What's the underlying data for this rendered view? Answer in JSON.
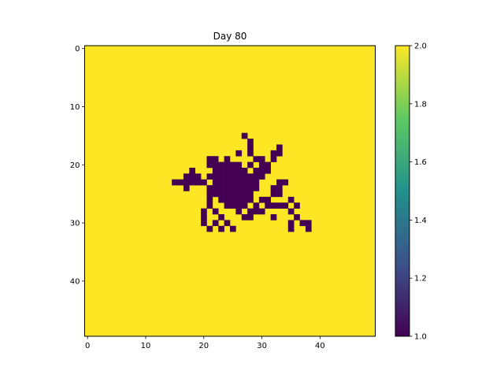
{
  "chart_data": {
    "type": "heatmap",
    "title": "Day 80",
    "xlabel": "",
    "ylabel": "",
    "grid": false,
    "rows": 50,
    "cols": 50,
    "background_value": 2.0,
    "xlim": [
      -0.5,
      49.5
    ],
    "ylim": [
      49.5,
      -0.5
    ],
    "x_ticks": [
      0,
      10,
      20,
      30,
      40
    ],
    "x_tick_labels": [
      "0",
      "10",
      "20",
      "30",
      "40"
    ],
    "y_ticks": [
      0,
      10,
      20,
      30,
      40
    ],
    "y_tick_labels": [
      "0",
      "10",
      "20",
      "30",
      "40"
    ],
    "colorbar": {
      "min": 1.0,
      "max": 2.0,
      "ticks": [
        1.0,
        1.2,
        1.4,
        1.6,
        1.8,
        2.0
      ],
      "tick_labels": [
        "1.0",
        "1.2",
        "1.4",
        "1.6",
        "1.8",
        "2.0"
      ],
      "colormap": "viridis",
      "colors": [
        "#440154",
        "#3b528b",
        "#21918c",
        "#5ec962",
        "#fde725"
      ]
    },
    "cells_value_1": [
      [
        15,
        27
      ],
      [
        16,
        28
      ],
      [
        17,
        28
      ],
      [
        17,
        33
      ],
      [
        18,
        26
      ],
      [
        18,
        28
      ],
      [
        18,
        32
      ],
      [
        18,
        33
      ],
      [
        19,
        21
      ],
      [
        19,
        22
      ],
      [
        19,
        24
      ],
      [
        19,
        29
      ],
      [
        19,
        30
      ],
      [
        19,
        32
      ],
      [
        20,
        21
      ],
      [
        20,
        22
      ],
      [
        20,
        23
      ],
      [
        20,
        24
      ],
      [
        20,
        25
      ],
      [
        20,
        26
      ],
      [
        20,
        28
      ],
      [
        20,
        30
      ],
      [
        20,
        31
      ],
      [
        21,
        18
      ],
      [
        21,
        22
      ],
      [
        21,
        23
      ],
      [
        21,
        24
      ],
      [
        21,
        25
      ],
      [
        21,
        26
      ],
      [
        21,
        27
      ],
      [
        21,
        29
      ],
      [
        21,
        30
      ],
      [
        21,
        31
      ],
      [
        22,
        17
      ],
      [
        22,
        18
      ],
      [
        22,
        19
      ],
      [
        22,
        21
      ],
      [
        22,
        22
      ],
      [
        22,
        23
      ],
      [
        22,
        24
      ],
      [
        22,
        25
      ],
      [
        22,
        26
      ],
      [
        22,
        27
      ],
      [
        22,
        28
      ],
      [
        22,
        29
      ],
      [
        22,
        30
      ],
      [
        23,
        15
      ],
      [
        23,
        16
      ],
      [
        23,
        17
      ],
      [
        23,
        18
      ],
      [
        23,
        19
      ],
      [
        23,
        20
      ],
      [
        23,
        22
      ],
      [
        23,
        23
      ],
      [
        23,
        24
      ],
      [
        23,
        25
      ],
      [
        23,
        26
      ],
      [
        23,
        27
      ],
      [
        23,
        28
      ],
      [
        23,
        29
      ],
      [
        23,
        33
      ],
      [
        23,
        34
      ],
      [
        24,
        17
      ],
      [
        24,
        21
      ],
      [
        24,
        22
      ],
      [
        24,
        23
      ],
      [
        24,
        24
      ],
      [
        24,
        25
      ],
      [
        24,
        26
      ],
      [
        24,
        27
      ],
      [
        24,
        28
      ],
      [
        24,
        29
      ],
      [
        24,
        32
      ],
      [
        24,
        33
      ],
      [
        25,
        21
      ],
      [
        25,
        22
      ],
      [
        25,
        23
      ],
      [
        25,
        24
      ],
      [
        25,
        25
      ],
      [
        25,
        26
      ],
      [
        25,
        27
      ],
      [
        25,
        28
      ],
      [
        25,
        32
      ],
      [
        25,
        33
      ],
      [
        26,
        21
      ],
      [
        26,
        23
      ],
      [
        26,
        24
      ],
      [
        26,
        25
      ],
      [
        26,
        26
      ],
      [
        26,
        27
      ],
      [
        26,
        28
      ],
      [
        26,
        30
      ],
      [
        26,
        31
      ],
      [
        26,
        35
      ],
      [
        27,
        21
      ],
      [
        27,
        24
      ],
      [
        27,
        25
      ],
      [
        27,
        26
      ],
      [
        27,
        27
      ],
      [
        27,
        29
      ],
      [
        27,
        31
      ],
      [
        27,
        32
      ],
      [
        27,
        33
      ],
      [
        27,
        34
      ],
      [
        27,
        36
      ],
      [
        28,
        20
      ],
      [
        28,
        22
      ],
      [
        28,
        26
      ],
      [
        28,
        28
      ],
      [
        28,
        29
      ],
      [
        28,
        30
      ],
      [
        28,
        35
      ],
      [
        29,
        20
      ],
      [
        29,
        23
      ],
      [
        29,
        27
      ],
      [
        29,
        28
      ],
      [
        29,
        32
      ],
      [
        29,
        36
      ],
      [
        30,
        20
      ],
      [
        30,
        22
      ],
      [
        30,
        24
      ],
      [
        30,
        35
      ],
      [
        30,
        37
      ],
      [
        30,
        38
      ],
      [
        31,
        21
      ],
      [
        31,
        23
      ],
      [
        31,
        25
      ],
      [
        31,
        35
      ],
      [
        31,
        38
      ]
    ]
  }
}
